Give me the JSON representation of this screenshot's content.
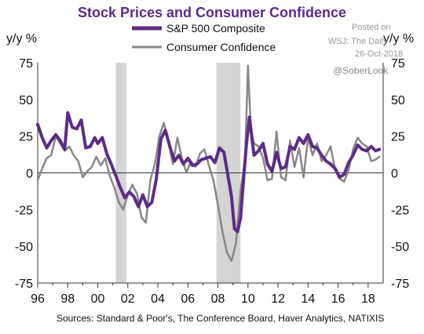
{
  "chart_data": {
    "type": "line",
    "title": "Stock Prices and Consumer Confidence",
    "ylabel_left": "y/y %",
    "ylabel_right": "y/y %",
    "ylim": [
      -75,
      75
    ],
    "y_ticks": [
      "75",
      "50",
      "25",
      "0",
      "-25",
      "-50",
      "-75"
    ],
    "x_ticks": [
      "96",
      "98",
      "00",
      "02",
      "04",
      "06",
      "08",
      "10",
      "12",
      "14",
      "16",
      "18"
    ],
    "x_range": [
      1996,
      2019
    ],
    "recessions": [
      [
        2001.2,
        2001.9
      ],
      [
        2007.9,
        2009.5
      ]
    ],
    "legend_position": "top-center",
    "source": "Sources: Standard & Poor's, The Conference Board, Haver Analytics, NATIXIS",
    "watermark": [
      "Posted on",
      "WSJ: The Daily",
      "26-Oct-2018",
      "@SoberLook"
    ],
    "series": [
      {
        "name": "S&P 500 Composite",
        "color": "#5b2c86",
        "x": [
          1996.0,
          1996.3,
          1996.6,
          1996.9,
          1997.2,
          1997.5,
          1997.8,
          1998.0,
          1998.3,
          1998.6,
          1998.9,
          1999.2,
          1999.5,
          1999.8,
          2000.0,
          2000.3,
          2000.6,
          2000.9,
          2001.2,
          2001.5,
          2001.8,
          2002.1,
          2002.4,
          2002.7,
          2003.0,
          2003.3,
          2003.6,
          2003.9,
          2004.2,
          2004.5,
          2004.8,
          2005.1,
          2005.4,
          2005.7,
          2006.0,
          2006.3,
          2006.6,
          2006.9,
          2007.2,
          2007.5,
          2007.8,
          2008.1,
          2008.4,
          2008.7,
          2008.9,
          2009.1,
          2009.3,
          2009.5,
          2009.7,
          2009.9,
          2010.1,
          2010.4,
          2010.7,
          2011.0,
          2011.3,
          2011.6,
          2011.9,
          2012.2,
          2012.5,
          2012.8,
          2013.1,
          2013.4,
          2013.7,
          2014.0,
          2014.3,
          2014.6,
          2014.9,
          2015.2,
          2015.5,
          2015.8,
          2016.1,
          2016.4,
          2016.7,
          2017.0,
          2017.3,
          2017.6,
          2017.9,
          2018.2,
          2018.5,
          2018.75
        ],
        "values": [
          33,
          24,
          17,
          22,
          26,
          22,
          16,
          41,
          31,
          30,
          36,
          17,
          18,
          24,
          20,
          24,
          13,
          6,
          -2,
          -10,
          -17,
          -13,
          -16,
          -23,
          -15,
          -23,
          -20,
          -4,
          23,
          29,
          18,
          8,
          12,
          6,
          10,
          5,
          6,
          9,
          10,
          11,
          7,
          17,
          14,
          -4,
          -16,
          -38,
          -40,
          -31,
          -5,
          20,
          38,
          12,
          15,
          20,
          6,
          1,
          14,
          3,
          4,
          18,
          16,
          24,
          20,
          26,
          18,
          17,
          12,
          8,
          6,
          3,
          -3,
          -1,
          7,
          12,
          19,
          16,
          15,
          18,
          15,
          16
        ]
      },
      {
        "name": "Consumer Confidence",
        "color": "#888888",
        "x": [
          1996.0,
          1996.3,
          1996.6,
          1996.9,
          1997.2,
          1997.5,
          1997.8,
          1998.1,
          1998.4,
          1998.7,
          1999.0,
          1999.3,
          1999.6,
          1999.9,
          2000.2,
          2000.5,
          2000.8,
          2001.1,
          2001.4,
          2001.7,
          2002.0,
          2002.3,
          2002.6,
          2002.9,
          2003.2,
          2003.5,
          2003.8,
          2004.1,
          2004.4,
          2004.7,
          2005.0,
          2005.3,
          2005.6,
          2005.9,
          2006.2,
          2006.5,
          2006.8,
          2007.1,
          2007.4,
          2007.7,
          2008.0,
          2008.3,
          2008.6,
          2008.9,
          2009.2,
          2009.5,
          2009.8,
          2010.0,
          2010.2,
          2010.4,
          2010.7,
          2011.0,
          2011.3,
          2011.6,
          2011.9,
          2012.2,
          2012.5,
          2012.8,
          2013.1,
          2013.4,
          2013.7,
          2014.0,
          2014.3,
          2014.6,
          2014.9,
          2015.2,
          2015.5,
          2015.8,
          2016.1,
          2016.4,
          2016.7,
          2017.0,
          2017.3,
          2017.6,
          2017.9,
          2018.2,
          2018.5,
          2018.75
        ],
        "values": [
          -5,
          3,
          10,
          12,
          25,
          20,
          15,
          18,
          12,
          8,
          -3,
          1,
          4,
          11,
          5,
          10,
          -2,
          -10,
          -20,
          -25,
          -15,
          -8,
          -14,
          -30,
          -34,
          -5,
          6,
          25,
          34,
          22,
          6,
          24,
          10,
          0,
          8,
          4,
          13,
          16,
          5,
          -5,
          -22,
          -40,
          -54,
          -60,
          -48,
          -12,
          8,
          73,
          28,
          20,
          18,
          10,
          -5,
          -4,
          28,
          -3,
          -5,
          22,
          4,
          17,
          -3,
          24,
          12,
          20,
          8,
          12,
          18,
          2,
          -4,
          -6,
          2,
          16,
          24,
          20,
          18,
          8,
          9,
          11
        ]
      }
    ]
  }
}
